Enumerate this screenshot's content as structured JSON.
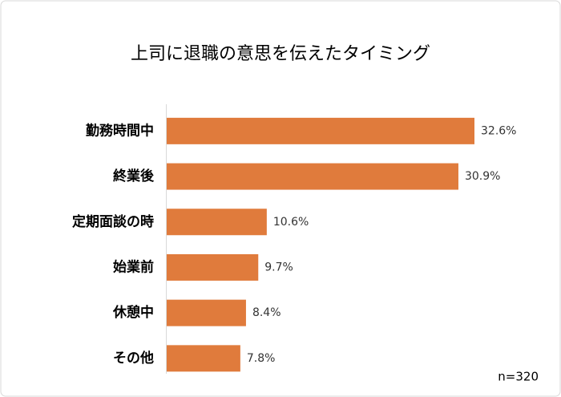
{
  "chart_data": {
    "type": "bar",
    "orientation": "horizontal",
    "title": "上司に退職の意思を伝えたタイミング",
    "categories": [
      "勤務時間中",
      "終業後",
      "定期面談の時",
      "始業前",
      "休憩中",
      "その他"
    ],
    "values": [
      32.6,
      30.9,
      10.6,
      9.7,
      8.4,
      7.8
    ],
    "value_labels": [
      "32.6%",
      "30.9%",
      "10.6%",
      "9.7%",
      "8.4%",
      "7.8%"
    ],
    "color": "#e07b3c",
    "annotation": "n=320"
  }
}
